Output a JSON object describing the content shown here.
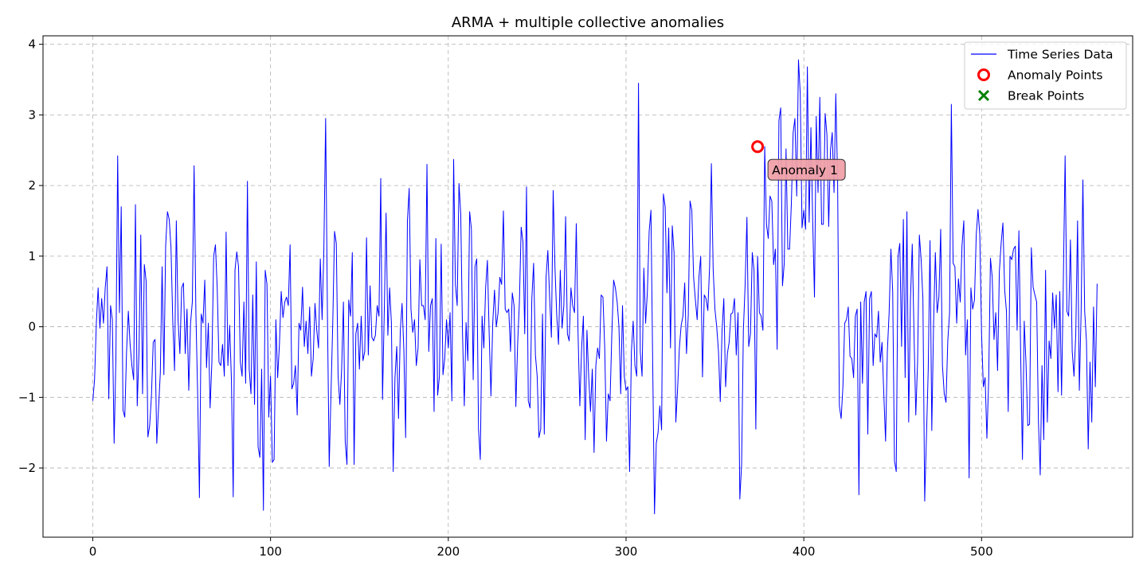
{
  "chart_data": {
    "type": "line",
    "title": "ARMA + multiple collective anomalies",
    "xlabel": "",
    "ylabel": "",
    "xlim": [
      -28,
      585
    ],
    "ylim": [
      -2.98,
      4.12
    ],
    "x_ticks": [
      0,
      100,
      200,
      300,
      400,
      500
    ],
    "y_ticks": [
      -2,
      -1,
      0,
      1,
      2,
      3,
      4
    ],
    "grid": true,
    "legend_position": "top-right",
    "series": [
      {
        "name": "Time Series Data",
        "kind": "line",
        "color": "#0000ff",
        "x_start": 0,
        "x_step": 1,
        "values": [
          -1.05,
          -0.75,
          0.05,
          0.55,
          -0.02,
          0.4,
          0.05,
          0.55,
          0.85,
          -1.02,
          0.3,
          0.1,
          -1.65,
          -0.45,
          2.42,
          0.2,
          1.7,
          -1.18,
          -1.28,
          -0.35,
          0.22,
          -0.25,
          -0.55,
          -0.75,
          1.73,
          -1.12,
          -0.35,
          1.3,
          -0.95,
          0.88,
          0.65,
          -1.56,
          -1.4,
          -0.98,
          -0.22,
          -0.18,
          -1.65,
          -1.15,
          -0.65,
          0.85,
          -0.68,
          1.15,
          1.63,
          1.52,
          1.12,
          0.08,
          -0.62,
          1.5,
          0.08,
          -0.38,
          0.55,
          0.62,
          -0.38,
          0.25,
          -0.9,
          0.05,
          0.35,
          2.28,
          0.2,
          -0.95,
          -2.42,
          0.18,
          0.05,
          0.66,
          -0.58,
          0.05,
          -1.15,
          -0.5,
          1.0,
          1.16,
          0.55,
          -0.5,
          -0.55,
          -0.25,
          -0.7,
          1.34,
          -0.55,
          0.02,
          -0.75,
          -2.41,
          0.8,
          1.06,
          0.85,
          -0.5,
          -0.7,
          0.35,
          -0.8,
          2.06,
          -0.6,
          -0.95,
          0.45,
          -1.1,
          0.92,
          -1.7,
          -1.85,
          -0.6,
          -2.6,
          0.8,
          0.6,
          -1.28,
          -0.7,
          -1.92,
          -1.88,
          0.1,
          -0.72,
          -0.25,
          0.5,
          0.13,
          0.35,
          0.42,
          0.3,
          1.16,
          -0.88,
          -0.8,
          -0.55,
          -1.25,
          0.05,
          -0.05,
          0.56,
          -0.28,
          0.08,
          -0.38,
          0.28,
          -0.7,
          -0.45,
          0.33,
          -0.05,
          -0.3,
          0.96,
          0.1,
          1.1,
          2.95,
          0.2,
          -1.98,
          -0.95,
          0.05,
          1.35,
          1.18,
          -0.7,
          -1.1,
          -0.6,
          0.35,
          -1.62,
          -1.95,
          0.38,
          0.15,
          1.05,
          -1.95,
          -0.1,
          0.05,
          -0.6,
          0.15,
          -0.48,
          -0.35,
          1.26,
          -0.4,
          0.58,
          -0.15,
          -0.2,
          -0.12,
          0.3,
          0.15,
          2.1,
          -1.03,
          0.25,
          1.61,
          -0.12,
          0.55,
          0.05,
          -2.05,
          -0.72,
          -0.28,
          -1.3,
          -0.05,
          0.33,
          -0.33,
          -1.57,
          1.5,
          1.96,
          0.25,
          -0.08,
          0.1,
          -0.55,
          -0.3,
          0.95,
          0.3,
          0.3,
          0.1,
          2.3,
          -0.35,
          0.3,
          0.4,
          -1.2,
          1.25,
          -0.97,
          -0.7,
          1.17,
          -0.68,
          -0.45,
          0.1,
          -0.3,
          0.2,
          -1.05,
          2.37,
          0.6,
          0.3,
          2.03,
          1.6,
          -0.1,
          -1.12,
          0.06,
          -0.48,
          1.63,
          1.38,
          -0.75,
          0.85,
          0.96,
          -1.45,
          -1.88,
          0.15,
          -0.3,
          0.55,
          0.94,
          -0.1,
          -0.98,
          0.05,
          0.52,
          0.0,
          0.2,
          0.7,
          0.6,
          1.64,
          0.25,
          0.2,
          0.25,
          -0.35,
          0.48,
          0.3,
          -1.13,
          -0.25,
          0.35,
          1.41,
          1.2,
          -0.1,
          1.98,
          -1.05,
          -1.15,
          0.4,
          0.9,
          -0.4,
          -0.7,
          -1.57,
          -1.45,
          0.18,
          -1.52,
          0.7,
          1.08,
          0.42,
          -0.15,
          1.93,
          0.85,
          0.16,
          -0.25,
          0.8,
          -0.02,
          0.3,
          1.56,
          -0.1,
          -0.2,
          0.55,
          0.3,
          0.2,
          1.46,
          -0.1,
          -1.12,
          -0.3,
          0.15,
          -1.6,
          -0.05,
          -0.72,
          -1.2,
          -0.6,
          -1.78,
          -0.55,
          -0.3,
          -0.45,
          0.45,
          0.42,
          -0.3,
          -1.62,
          -0.95,
          -1.05,
          -0.1,
          0.66,
          0.55,
          0.35,
          0.0,
          -0.95,
          0.3,
          -0.7,
          -0.9,
          -0.85,
          -2.05,
          -0.35,
          0.08,
          -0.55,
          -0.7,
          3.45,
          -0.35,
          -0.7,
          0.83,
          0.05,
          0.5,
          1.35,
          1.65,
          -0.55,
          -2.65,
          -1.65,
          -1.5,
          -1.12,
          -1.46,
          1.88,
          1.7,
          0.48,
          1.4,
          -0.3,
          1.43,
          1.05,
          -1.35,
          -0.88,
          -0.3,
          0.02,
          0.15,
          0.62,
          -0.38,
          0.16,
          1.78,
          1.65,
          0.7,
          0.38,
          0.1,
          0.7,
          1.0,
          -0.71,
          0.45,
          0.4,
          0.23,
          0.85,
          2.31,
          0.82,
          0.25,
          0.0,
          -0.35,
          -1.06,
          -0.05,
          0.4,
          -0.85,
          -0.38,
          -0.22,
          0.18,
          0.2,
          0.4,
          -0.4,
          0.2,
          -2.44,
          -1.95,
          -0.05,
          0.6,
          1.55,
          -0.28,
          -0.1,
          1.05,
          0.8,
          -1.45,
          1.0,
          0.2,
          0.15,
          -0.05,
          2.55,
          1.45,
          1.25,
          1.85,
          1.78,
          0.88,
          1.1,
          -0.32,
          2.92,
          3.1,
          0.58,
          0.9,
          2.52,
          1.1,
          1.1,
          1.75,
          2.75,
          2.95,
          1.85,
          3.78,
          3.3,
          1.4,
          1.65,
          1.38,
          3.68,
          1.48,
          2.82,
          1.5,
          0.42,
          2.98,
          1.9,
          3.25,
          1.45,
          1.45,
          3.02,
          2.72,
          1.42,
          2.5,
          2.75,
          1.9,
          3.3,
          2.1,
          -1.12,
          -1.3,
          -0.85,
          0.05,
          0.1,
          0.28,
          -0.42,
          -0.45,
          -0.72,
          0.15,
          0.25,
          -2.38,
          0.35,
          -0.8,
          0.35,
          0.5,
          -1.52,
          0.4,
          0.5,
          -0.55,
          -0.1,
          -0.15,
          0.22,
          -0.5,
          -0.22,
          -0.95,
          -1.62,
          -0.35,
          0.2,
          1.1,
          0.5,
          -1.9,
          -2.05,
          1.0,
          1.18,
          -0.28,
          1.52,
          -0.72,
          1.63,
          -1.35,
          0.38,
          1.17,
          -0.1,
          -1.25,
          -0.5,
          1.3,
          0.95,
          0.4,
          -2.47,
          -1.55,
          -0.6,
          1.22,
          -1.47,
          0.05,
          1.05,
          0.2,
          0.42,
          1.38,
          -0.55,
          -0.95,
          -1.07,
          -0.2,
          0.2,
          3.15,
          0.9,
          0.85,
          0.05,
          0.68,
          0.35,
          1.15,
          1.5,
          -0.4,
          0.1,
          -2.14,
          0.55,
          0.25,
          0.38,
          1.3,
          1.66,
          1.3,
          -0.1,
          -0.85,
          -0.72,
          -1.58,
          -0.75,
          0.97,
          0.7,
          -0.18,
          0.2,
          -0.62,
          0.78,
          1.18,
          1.47,
          0.52,
          0.22,
          -1.2,
          1.0,
          0.95,
          1.1,
          1.14,
          -0.05,
          1.36,
          -0.4,
          -1.88,
          0.08,
          -0.52,
          -1.4,
          -1.38,
          1.12,
          0.56,
          0.45,
          0.35,
          -1.35,
          -2.1,
          -0.55,
          -1.6,
          0.8,
          -1.35,
          -0.2,
          -0.45,
          0.48,
          -0.02,
          0.45,
          -0.92,
          0.5,
          -0.97,
          0.65,
          2.42,
          0.22,
          0.15,
          1.23,
          -0.35,
          -0.7,
          -0.1,
          1.5,
          -0.9,
          0.2,
          2.08,
          0.22,
          -0.2,
          -1.73,
          -0.5,
          -1.35,
          0.28,
          -0.85,
          0.61
        ]
      },
      {
        "name": "Anomaly Points",
        "kind": "scatter",
        "marker": "circle",
        "color": "#ff0000",
        "points": [
          {
            "x": 374,
            "y": 2.55
          }
        ]
      },
      {
        "name": "Break Points",
        "kind": "scatter",
        "marker": "x",
        "color": "#008000",
        "points": []
      }
    ],
    "annotations": [
      {
        "text": "Anomaly 1",
        "x": 374,
        "y": 2.55,
        "fill": "#f0a0a8"
      }
    ]
  }
}
